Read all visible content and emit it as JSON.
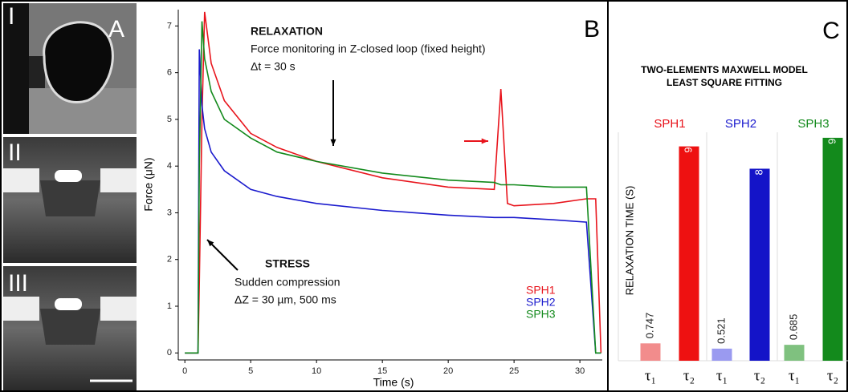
{
  "panel_labels": [
    "A",
    "B",
    "C"
  ],
  "image_labels": [
    "I",
    "II",
    "III"
  ],
  "chart_data": [
    {
      "type": "line",
      "x_label": "Time (s)",
      "y_label": "Force (μN)",
      "annotations": [
        "RELAXATION",
        "Force monitoring in Z-closed loop (fixed height)",
        "Δt = 30 s",
        "STRESS",
        "Sudden compression",
        "ΔZ = 30 µm, 500 ms"
      ],
      "x": [
        0,
        1.0,
        1.1,
        1.3,
        1.5,
        2,
        3,
        5,
        7,
        10,
        15,
        20,
        23.5,
        24,
        24.5,
        25,
        28,
        30.5,
        31.2,
        31.6
      ],
      "xlim": [
        -0.5,
        31.7
      ],
      "xticks": [
        0,
        5,
        10,
        15,
        20,
        25,
        30
      ],
      "ylim": [
        -0.15,
        7.35
      ],
      "yticks": [
        0,
        1,
        2,
        3,
        4,
        5,
        6,
        7
      ],
      "series": [
        {
          "name": "SPH1",
          "color": "#e8141c",
          "values": [
            0,
            0,
            1.5,
            5.0,
            7.3,
            6.2,
            5.4,
            4.7,
            4.4,
            4.1,
            3.75,
            3.55,
            3.5,
            5.65,
            3.2,
            3.15,
            3.2,
            3.3,
            3.3,
            0
          ]
        },
        {
          "name": "SPH2",
          "color": "#1a1acd",
          "values": [
            0,
            0,
            6.5,
            5.3,
            4.8,
            4.3,
            3.9,
            3.5,
            3.35,
            3.2,
            3.05,
            2.95,
            2.9,
            2.9,
            2.9,
            2.9,
            2.85,
            2.8,
            0,
            0
          ]
        },
        {
          "name": "SPH3",
          "color": "#138a1c",
          "values": [
            0,
            0,
            4.0,
            7.1,
            6.3,
            5.6,
            5.0,
            4.6,
            4.3,
            4.1,
            3.85,
            3.7,
            3.65,
            3.6,
            3.6,
            3.6,
            3.55,
            3.55,
            0,
            0
          ]
        }
      ]
    },
    {
      "type": "bar",
      "title": [
        "TWO-ELEMENTS MAXWELL MODEL",
        "LEAST SQUARE FITTING"
      ],
      "y_label": "RELAXATION TIME (S)",
      "groups": [
        "SPH1",
        "SPH2",
        "SPH3"
      ],
      "group_colors": [
        "#e8141c",
        "#1a1acd",
        "#138a1c"
      ],
      "categories": [
        "τ₁",
        "τ₂",
        "τ₁",
        "τ₂",
        "τ₁",
        "τ₂"
      ],
      "values": [
        0.747,
        9.22,
        0.521,
        8.26,
        0.685,
        9.59
      ],
      "colors": [
        "#f28c8c",
        "#ee1111",
        "#9a9af0",
        "#1414c8",
        "#7fc17f",
        "#138a1c"
      ],
      "ylim": [
        0,
        10
      ]
    }
  ]
}
